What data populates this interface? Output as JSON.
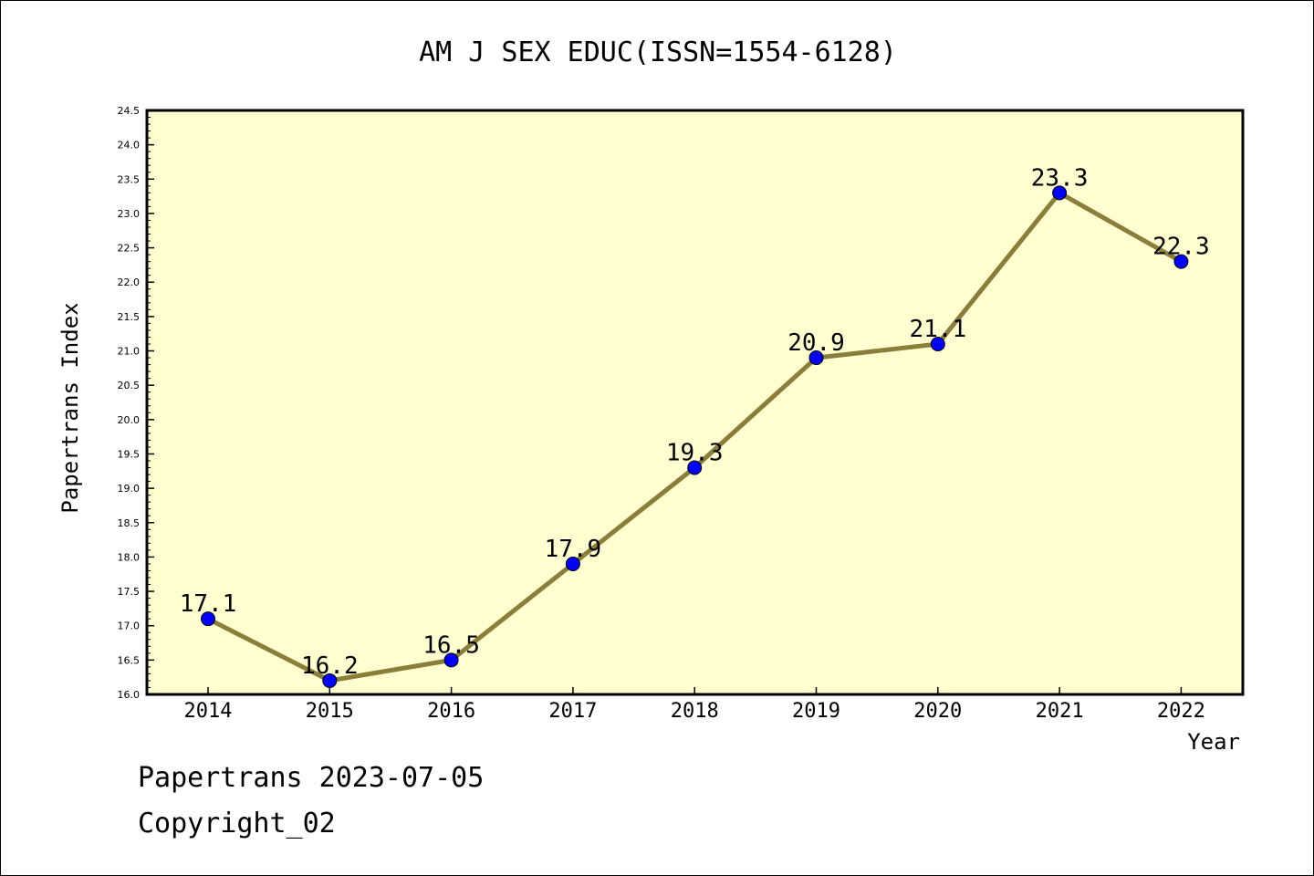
{
  "chart_data": {
    "type": "line",
    "title": "AM J SEX EDUC(ISSN=1554-6128)",
    "xlabel": "Year",
    "ylabel": "Papertrans Index",
    "x": [
      "2014",
      "2015",
      "2016",
      "2017",
      "2018",
      "2019",
      "2020",
      "2021",
      "2022"
    ],
    "series": [
      {
        "values": [
          17.1,
          16.2,
          16.5,
          17.9,
          19.3,
          20.9,
          21.1,
          23.3,
          22.3
        ]
      }
    ],
    "data_labels": [
      "17.1",
      "16.2",
      "16.5",
      "17.9",
      "19.3",
      "20.9",
      "21.1",
      "23.3",
      "22.3"
    ],
    "ylim": [
      16.0,
      24.5
    ],
    "yticks": [
      "16.0",
      "16.5",
      "17.0",
      "17.5",
      "18.0",
      "18.5",
      "19.0",
      "19.5",
      "20.0",
      "20.5",
      "21.0",
      "21.5",
      "22.0",
      "22.5",
      "23.0",
      "23.5",
      "24.0",
      "24.5"
    ],
    "grid": false,
    "legend": "none",
    "colors": {
      "plot_background": "#ffffd0",
      "line": "#8b7d3a",
      "marker": "#0000ff",
      "marker_edge": "#000000"
    }
  },
  "footer": {
    "date_line": "Papertrans 2023-07-05",
    "copyright_line": "Copyright_02"
  }
}
